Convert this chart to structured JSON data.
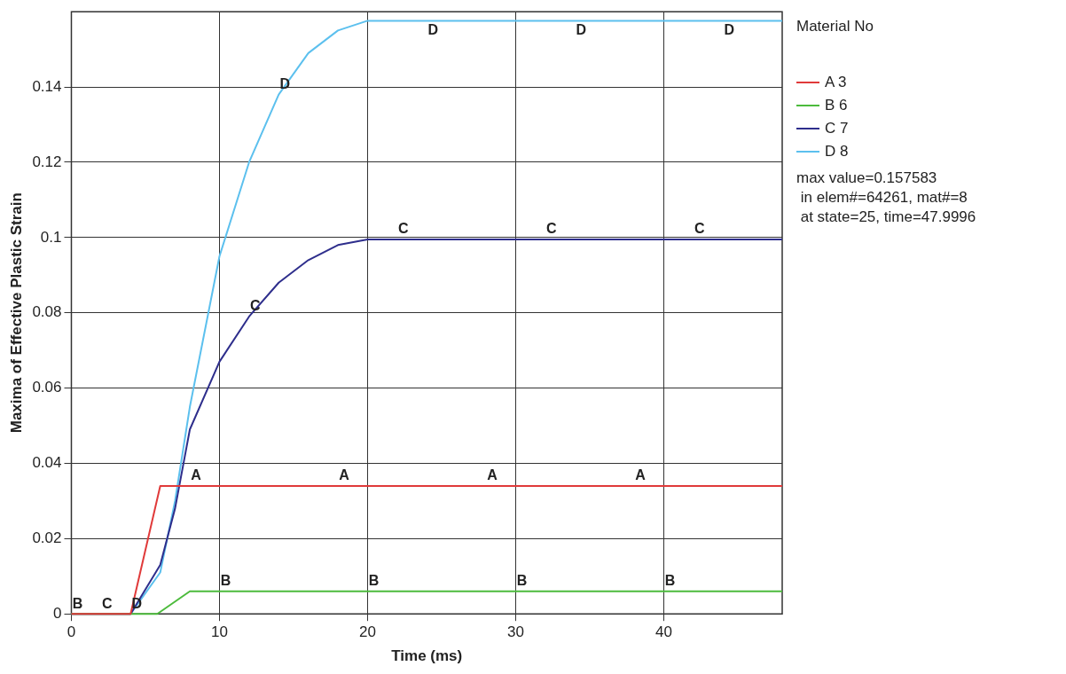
{
  "chart_data": {
    "type": "line",
    "xlabel": "Time (ms)",
    "ylabel": "Maxima of Effective Plastic Strain",
    "legend_title": "Material No",
    "legend": "right",
    "grid": true,
    "marker": "none",
    "line_style": "solid",
    "xlim": [
      0,
      48
    ],
    "xticks": [
      0,
      10,
      20,
      30,
      40
    ],
    "ylim": [
      0,
      0.16
    ],
    "yticks": [
      0,
      0.02,
      0.04,
      0.06,
      0.08,
      0.1,
      0.12,
      0.14
    ],
    "series": [
      {
        "name": "A 3",
        "color": "#e03a3a",
        "x": [
          0,
          4,
          6,
          48
        ],
        "values": [
          0,
          0,
          0.034,
          0.034
        ]
      },
      {
        "name": "B 6",
        "color": "#4cbb3c",
        "x": [
          0,
          5.8,
          8,
          48
        ],
        "values": [
          0,
          0,
          0.006,
          0.006
        ]
      },
      {
        "name": "C 7",
        "color": "#2e2e8c",
        "x": [
          0,
          4,
          6,
          7,
          8,
          10,
          12,
          14,
          16,
          18,
          20,
          48
        ],
        "values": [
          0,
          0,
          0.013,
          0.028,
          0.049,
          0.067,
          0.079,
          0.088,
          0.094,
          0.098,
          0.0995,
          0.0995
        ]
      },
      {
        "name": "D 8",
        "color": "#5cc0ee",
        "x": [
          0,
          4,
          6,
          7,
          8,
          10,
          12,
          14,
          16,
          18,
          20,
          48
        ],
        "values": [
          0,
          0,
          0.011,
          0.03,
          0.055,
          0.095,
          0.12,
          0.138,
          0.149,
          0.155,
          0.1576,
          0.1576
        ]
      }
    ],
    "annotations": [
      "max value=0.157583",
      " in elem#=64261, mat#=8",
      " at state=25, time=47.9996",
      {
        "text": "A",
        "x": 8,
        "y": 0.034
      },
      {
        "text": "A",
        "x": 18,
        "y": 0.034
      },
      {
        "text": "A",
        "x": 28,
        "y": 0.034
      },
      {
        "text": "A",
        "x": 38,
        "y": 0.034
      },
      {
        "text": "B",
        "x": 0,
        "y": 0
      },
      {
        "text": "B",
        "x": 10,
        "y": 0.006
      },
      {
        "text": "B",
        "x": 20,
        "y": 0.006
      },
      {
        "text": "B",
        "x": 30,
        "y": 0.006
      },
      {
        "text": "B",
        "x": 40,
        "y": 0.006
      },
      {
        "text": "C",
        "x": 2,
        "y": 0
      },
      {
        "text": "C",
        "x": 12,
        "y": 0.079
      },
      {
        "text": "C",
        "x": 22,
        "y": 0.0995
      },
      {
        "text": "C",
        "x": 32,
        "y": 0.0995
      },
      {
        "text": "C",
        "x": 42,
        "y": 0.0995
      },
      {
        "text": "D",
        "x": 4,
        "y": 0
      },
      {
        "text": "D",
        "x": 14,
        "y": 0.138
      },
      {
        "text": "D",
        "x": 24,
        "y": 0.1576
      },
      {
        "text": "D",
        "x": 34,
        "y": 0.1576
      },
      {
        "text": "D",
        "x": 44,
        "y": 0.1576
      }
    ]
  }
}
